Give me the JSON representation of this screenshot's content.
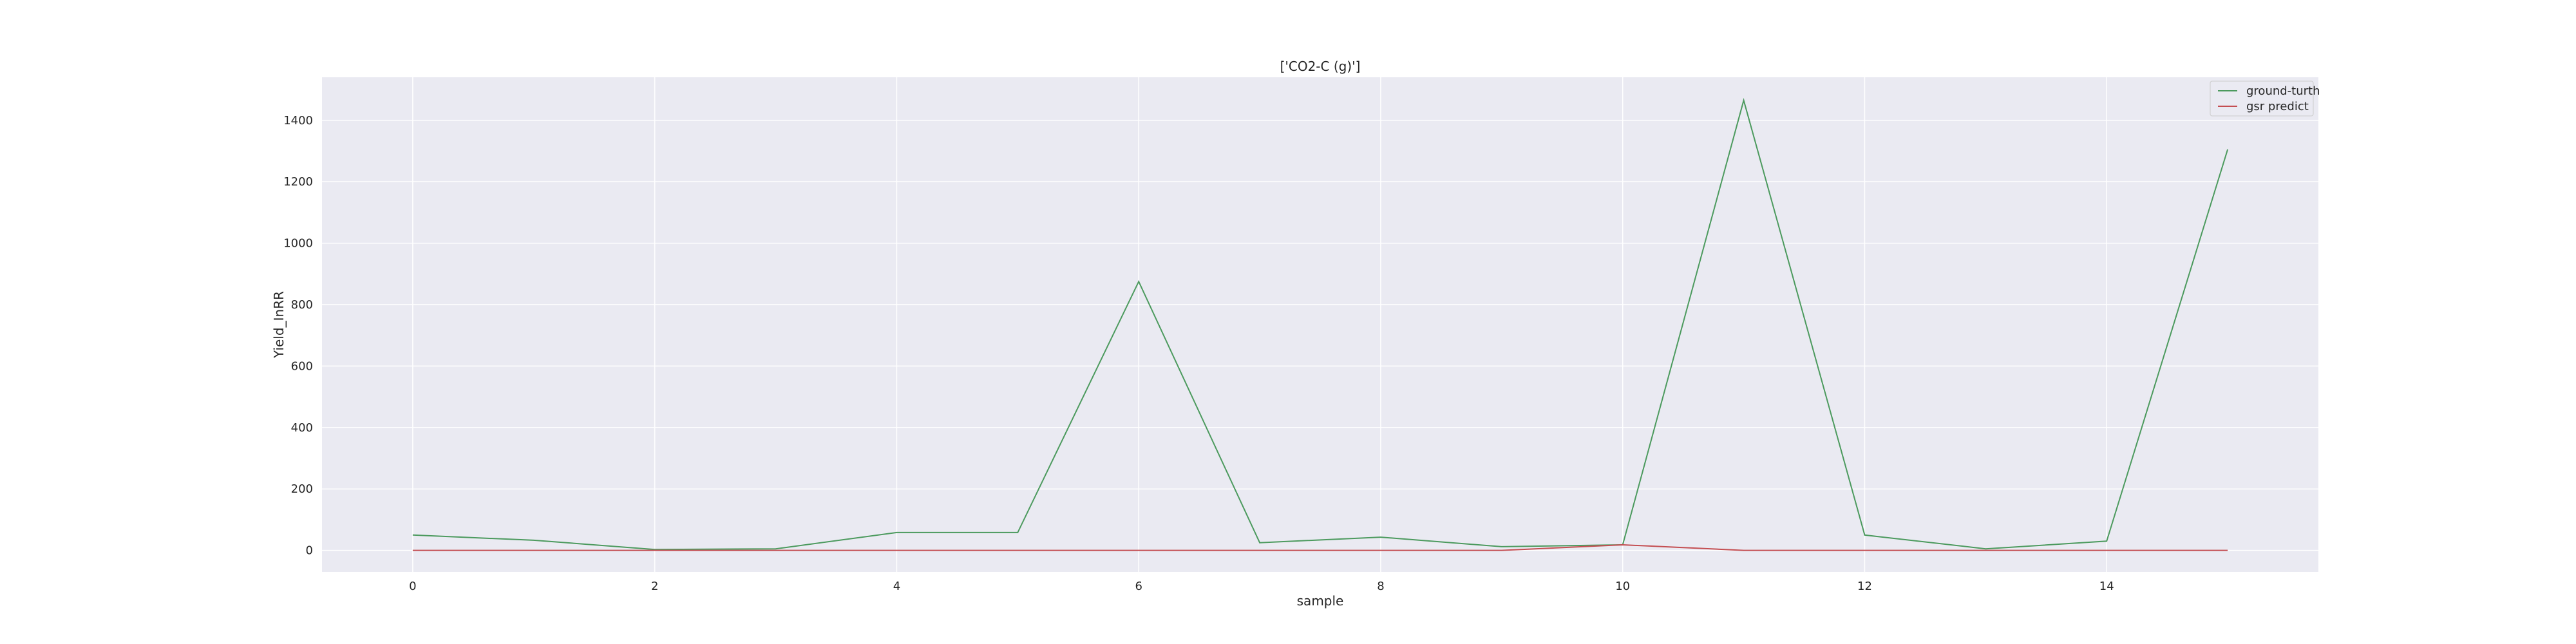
{
  "chart_data": {
    "type": "line",
    "title": "['CO2-C (g)']",
    "xlabel": "sample",
    "ylabel": "Yield_InRR",
    "x": [
      0,
      1,
      2,
      3,
      4,
      5,
      6,
      7,
      8,
      9,
      10,
      11,
      12,
      13,
      14,
      15
    ],
    "xlim": [
      -0.75,
      15.75
    ],
    "ylim": [
      -70,
      1540
    ],
    "xticks": [
      0,
      2,
      4,
      6,
      8,
      10,
      12,
      14
    ],
    "yticks": [
      0,
      200,
      400,
      600,
      800,
      1000,
      1200,
      1400
    ],
    "grid": true,
    "legend_position": "top-right",
    "series": [
      {
        "name": "ground-turth",
        "color": "#4c9a5e",
        "values": [
          50,
          33,
          3,
          5,
          58,
          58,
          875,
          25,
          43,
          12,
          18,
          1465,
          50,
          5,
          30,
          1305
        ]
      },
      {
        "name": "gsr predict",
        "color": "#c44e52",
        "values": [
          0,
          0,
          0,
          0,
          0,
          0,
          0,
          0,
          0,
          0,
          18,
          0,
          0,
          0,
          0,
          0
        ]
      }
    ]
  }
}
